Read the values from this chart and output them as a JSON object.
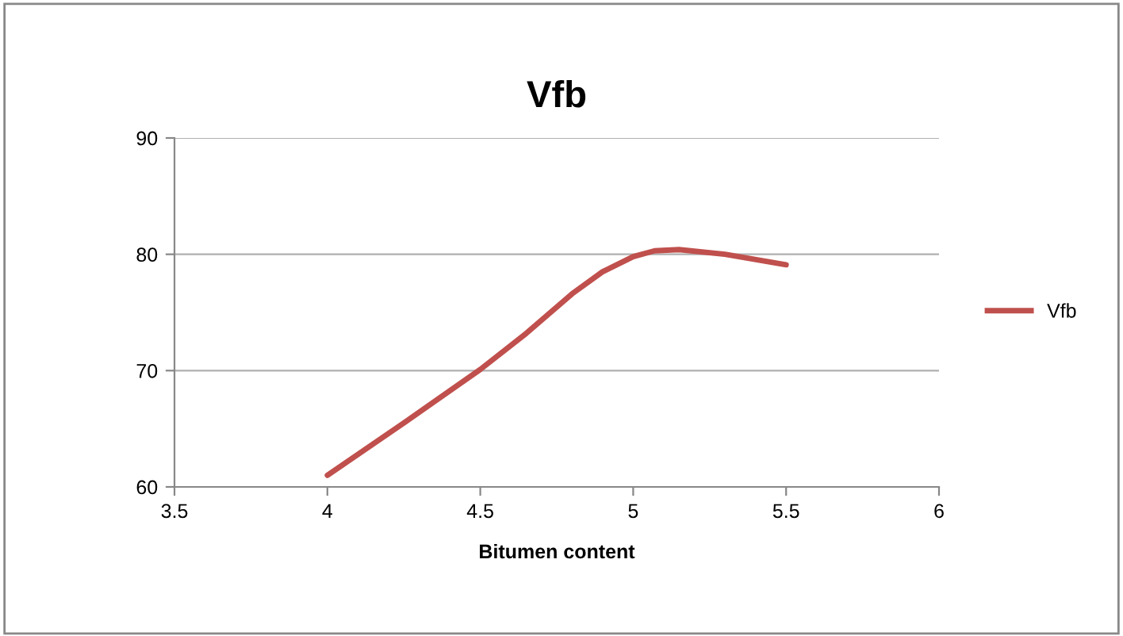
{
  "chart_data": {
    "type": "line",
    "title": "Vfb",
    "xlabel": "Bitumen content",
    "x": [
      4,
      4.25,
      4.5,
      4.65,
      4.8,
      4.9,
      5,
      5.07,
      5.15,
      5.3,
      5.5
    ],
    "series": [
      {
        "name": "Vfb",
        "color": "#c0504d",
        "values": [
          61.0,
          65.5,
          70.1,
          73.2,
          76.6,
          78.5,
          79.8,
          80.3,
          80.4,
          80.0,
          79.1
        ]
      }
    ],
    "xlim": [
      3.5,
      6
    ],
    "xticks": [
      3.5,
      4,
      4.5,
      5,
      5.5,
      6
    ],
    "ylim": [
      60,
      90
    ],
    "yticks": [
      60,
      70,
      80,
      90
    ],
    "grid": "y",
    "legend": "right",
    "marker": "none",
    "line_style": "solid"
  }
}
